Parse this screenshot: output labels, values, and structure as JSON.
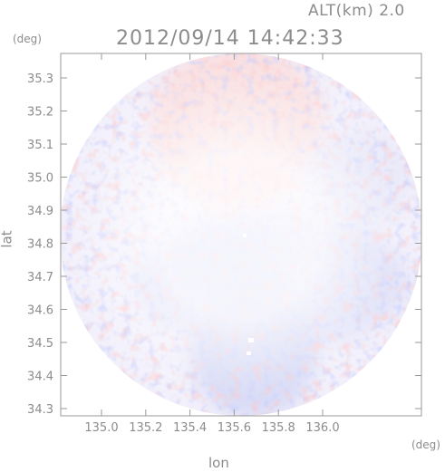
{
  "header": {
    "altitude_text": "ALT(km) 2.0",
    "timestamp": "2012/09/14 14:42:33"
  },
  "axes": {
    "y_unit": "(deg)",
    "x_unit": "(deg)",
    "y_title": "lat",
    "x_title": "lon",
    "x_ticks": [
      "135.0",
      "135.2",
      "135.4",
      "135.6",
      "135.8",
      "136.0"
    ],
    "y_ticks": [
      "35.3",
      "35.2",
      "35.1",
      "35.0",
      "34.9",
      "34.8",
      "34.7",
      "34.6",
      "34.5",
      "34.4",
      "34.3"
    ]
  },
  "colors": {
    "positive": "#f4b8b8",
    "negative": "#b8bef0",
    "frame": "#9a9a9a"
  }
}
